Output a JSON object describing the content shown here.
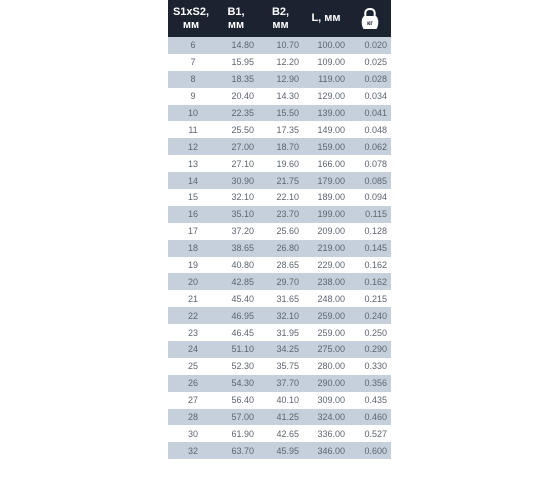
{
  "header": {
    "col1": [
      "S1xS2,",
      "мм"
    ],
    "col2": [
      "B1,",
      "мм"
    ],
    "col3": [
      "B2,",
      "мм"
    ],
    "col4": "L, мм",
    "col5_icon": "kettlebell-icon",
    "col5_icon_label": "кг"
  },
  "rows": [
    [
      "6",
      "14.80",
      "10.70",
      "100.00",
      "0.020"
    ],
    [
      "7",
      "15.95",
      "12.20",
      "109.00",
      "0.025"
    ],
    [
      "8",
      "18.35",
      "12.90",
      "119.00",
      "0.028"
    ],
    [
      "9",
      "20.40",
      "14.30",
      "129.00",
      "0.034"
    ],
    [
      "10",
      "22.35",
      "15.50",
      "139.00",
      "0.041"
    ],
    [
      "11",
      "25.50",
      "17.35",
      "149.00",
      "0.048"
    ],
    [
      "12",
      "27.00",
      "18.70",
      "159.00",
      "0.062"
    ],
    [
      "13",
      "27.10",
      "19.60",
      "166.00",
      "0.078"
    ],
    [
      "14",
      "30.90",
      "21.75",
      "179.00",
      "0.085"
    ],
    [
      "15",
      "32.10",
      "22.10",
      "189.00",
      "0.094"
    ],
    [
      "16",
      "35.10",
      "23.70",
      "199.00",
      "0.115"
    ],
    [
      "17",
      "37.20",
      "25.60",
      "209.00",
      "0.128"
    ],
    [
      "18",
      "38.65",
      "26.80",
      "219.00",
      "0.145"
    ],
    [
      "19",
      "40.80",
      "28.65",
      "229.00",
      "0.162"
    ],
    [
      "20",
      "42.85",
      "29.70",
      "238.00",
      "0.162"
    ],
    [
      "21",
      "45.40",
      "31.65",
      "248.00",
      "0.215"
    ],
    [
      "22",
      "46.95",
      "32.10",
      "259.00",
      "0.240"
    ],
    [
      "23",
      "46.45",
      "31.95",
      "259.00",
      "0.250"
    ],
    [
      "24",
      "51.10",
      "34.25",
      "275.00",
      "0.290"
    ],
    [
      "25",
      "52.30",
      "35.75",
      "280.00",
      "0.330"
    ],
    [
      "26",
      "54.30",
      "37.70",
      "290.00",
      "0.356"
    ],
    [
      "27",
      "56.40",
      "40.10",
      "309.00",
      "0.435"
    ],
    [
      "28",
      "57.00",
      "41.25",
      "324.00",
      "0.460"
    ],
    [
      "30",
      "61.90",
      "42.65",
      "336.00",
      "0.527"
    ],
    [
      "32",
      "63.70",
      "45.95",
      "346.00",
      "0.600"
    ]
  ],
  "colors": {
    "header_bg": "#1b2230",
    "row_stripe": "#c6d0dd",
    "row_plain": "#ffffff",
    "text": "#5d6470"
  }
}
